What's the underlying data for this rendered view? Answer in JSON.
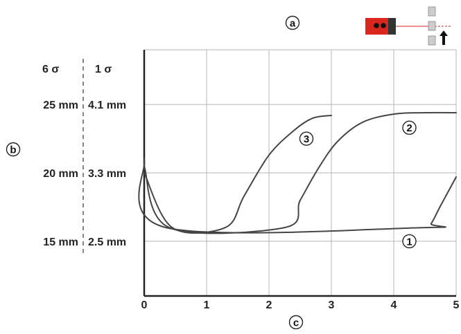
{
  "chart_data": {
    "type": "line",
    "x_ticks": [
      "0",
      "1",
      "2",
      "3",
      "4",
      "5"
    ],
    "xlim": [
      0,
      5
    ],
    "ylim": [
      11,
      29
    ],
    "y_label_columns": {
      "sigma6": {
        "header": "6 σ",
        "labels": [
          "25 mm",
          "20 mm",
          "15 mm"
        ]
      },
      "sigma1": {
        "header": "1 σ",
        "labels": [
          "4.1 mm",
          "3.3 mm",
          "2.5 mm"
        ]
      }
    },
    "y_label_values": [
      25,
      20,
      15
    ],
    "grid": true,
    "callouts": {
      "top": "a",
      "left": "b",
      "bottom": "c"
    },
    "series": [
      {
        "label": "1",
        "x": [
          0,
          0.35,
          4.5,
          4.6,
          4.75,
          5.0
        ],
        "y": [
          21.0,
          16.0,
          16.0,
          16.3,
          17.6,
          19.7
        ],
        "label_pos": [
          4.25,
          15.0
        ]
      },
      {
        "label": "2",
        "x": [
          0,
          0.4,
          2.25,
          2.5,
          2.8,
          3.1,
          3.5,
          4.0,
          4.5,
          5.0
        ],
        "y": [
          20.5,
          16.0,
          16.0,
          18.0,
          20.4,
          22.3,
          23.7,
          24.3,
          24.4,
          24.4
        ],
        "label_pos": [
          4.25,
          23.3
        ]
      },
      {
        "label": "3",
        "x": [
          0,
          0.45,
          1.3,
          1.6,
          2.0,
          2.4,
          2.7,
          3.0
        ],
        "y": [
          20.0,
          16.0,
          16.0,
          18.3,
          21.3,
          23.1,
          24.0,
          24.2
        ],
        "label_pos": [
          2.6,
          22.5
        ]
      }
    ]
  },
  "sensor_icon": {
    "label": "sensor-with-target-icon"
  }
}
